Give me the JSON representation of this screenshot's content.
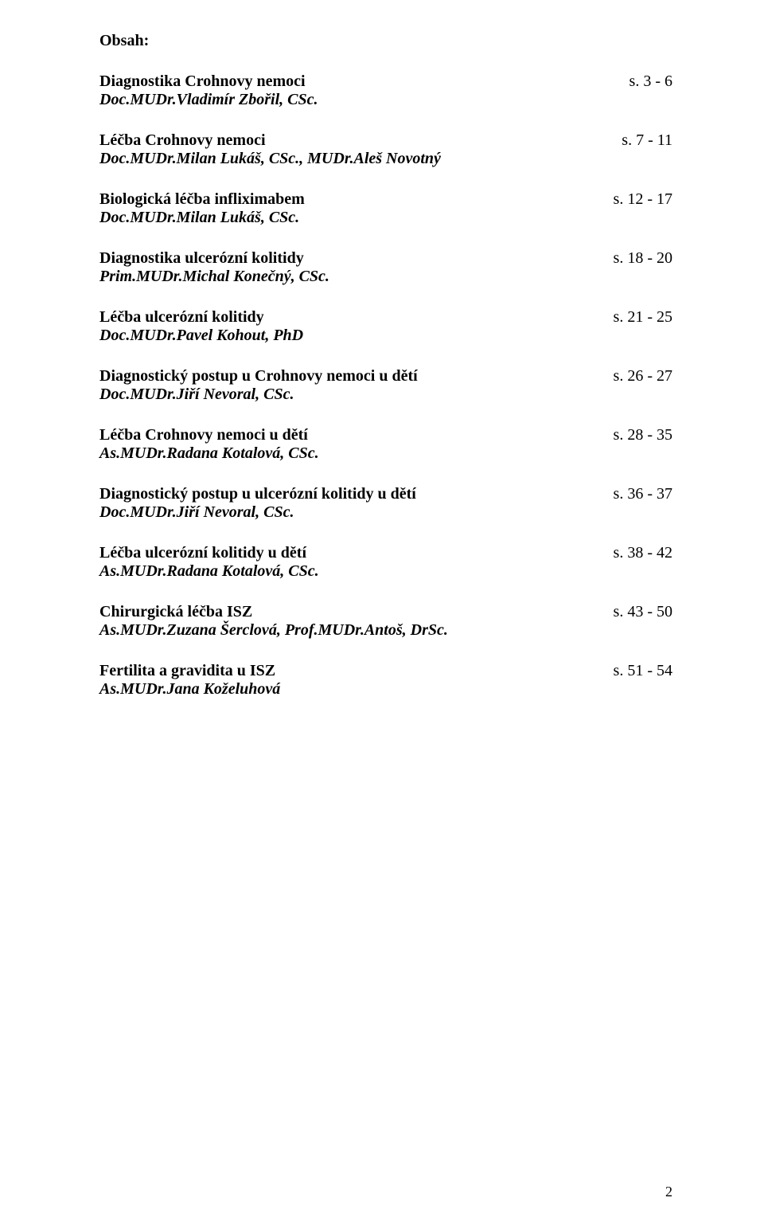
{
  "heading": "Obsah:",
  "entries": [
    {
      "title": "Diagnostika Crohnovy nemoci",
      "author": "Doc.MUDr.Vladimír Zbořil, CSc.",
      "pages": "s. 3 - 6"
    },
    {
      "title": "Léčba Crohnovy nemoci",
      "author": "Doc.MUDr.Milan Lukáš, CSc., MUDr.Aleš Novotný",
      "pages": "s. 7 - 11"
    },
    {
      "title": "Biologická léčba infliximabem",
      "author": "Doc.MUDr.Milan Lukáš, CSc.",
      "pages": "s. 12 - 17"
    },
    {
      "title": "Diagnostika ulcerózní kolitidy",
      "author": "Prim.MUDr.Michal Konečný, CSc.",
      "pages": "s. 18 - 20"
    },
    {
      "title": "Léčba ulcerózní kolitidy",
      "author": "Doc.MUDr.Pavel Kohout, PhD",
      "pages": "s. 21 - 25"
    },
    {
      "title": "Diagnostický postup u Crohnovy nemoci u dětí",
      "author": "Doc.MUDr.Jiří Nevoral, CSc.",
      "pages": "s. 26 - 27"
    },
    {
      "title": "Léčba Crohnovy nemoci u dětí",
      "author": "As.MUDr.Radana Kotalová, CSc.",
      "pages": "s. 28 - 35"
    },
    {
      "title": "Diagnostický postup u ulcerózní kolitidy u dětí",
      "author": "Doc.MUDr.Jiří Nevoral, CSc.",
      "pages": "s. 36 - 37"
    },
    {
      "title": "Léčba ulcerózní kolitidy u dětí",
      "author": "As.MUDr.Radana Kotalová, CSc.",
      "pages": "s. 38 - 42"
    },
    {
      "title": "Chirurgická léčba ISZ",
      "author": "As.MUDr.Zuzana Šerclová, Prof.MUDr.Antoš, DrSc.",
      "pages": "s. 43 - 50"
    },
    {
      "title": "Fertilita a gravidita u ISZ",
      "author": "As.MUDr.Jana Koželuhová",
      "pages": "s. 51 - 54"
    }
  ],
  "pageNumber": "2"
}
